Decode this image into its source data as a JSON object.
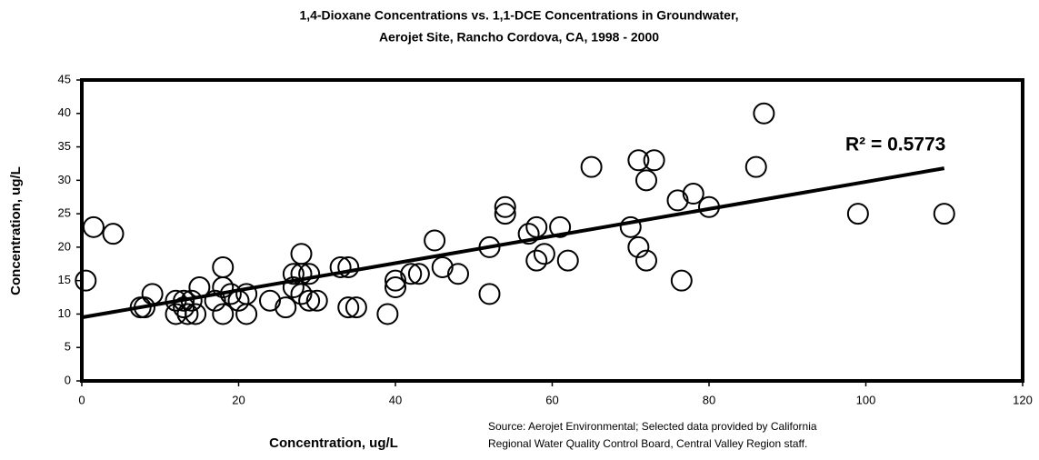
{
  "chart_data": {
    "type": "scatter",
    "title": [
      "1,4-Dioxane Concentrations vs. 1,1-DCE Concentrations in Groundwater,",
      "Aerojet Site, Rancho Cordova, CA, 1998 - 2000"
    ],
    "x_label": "Concentration, ug/L",
    "y_label": "Concentration, ug/L",
    "source": [
      "Source:  Aerojet Environmental; Selected data provided by California",
      "Regional Water Quality Control Board, Central Valley Region staff."
    ],
    "annotation": "R² = 0.5773",
    "color": "#000000",
    "x": [
      0.5,
      1.5,
      4,
      7.5,
      8,
      9,
      12,
      12,
      13,
      13,
      13.5,
      14,
      14.5,
      15,
      17,
      18,
      18,
      18,
      19,
      20,
      21,
      21,
      24,
      26,
      27,
      27,
      28,
      28,
      28,
      29,
      29,
      30,
      33,
      34,
      34,
      35,
      39,
      40,
      40,
      42,
      43,
      45,
      46,
      48,
      52,
      52,
      54,
      54,
      57,
      58,
      58,
      59,
      61,
      62,
      65,
      70,
      71,
      71,
      72,
      72,
      73,
      76,
      76.5,
      78,
      80,
      86,
      87,
      99,
      110
    ],
    "values": [
      15,
      23,
      22,
      11,
      11,
      13,
      12,
      10,
      12,
      11,
      10,
      12,
      10,
      14,
      12,
      17,
      14,
      10,
      13,
      12,
      10,
      13,
      12,
      11,
      14,
      16,
      19,
      16,
      13,
      12,
      16,
      12,
      17,
      17,
      11,
      11,
      10,
      15,
      14,
      16,
      16,
      21,
      17,
      16,
      20,
      13,
      26,
      25,
      22,
      23,
      18,
      19,
      23,
      18,
      32,
      23,
      33,
      20,
      30,
      18,
      33,
      27,
      15,
      28,
      26,
      32,
      40,
      25,
      25
    ],
    "trendline": {
      "x": [
        0,
        110
      ],
      "y": [
        9.5,
        31.8
      ]
    },
    "xlim": [
      0,
      120
    ],
    "xticks": [
      0,
      20,
      40,
      60,
      80,
      100,
      120
    ],
    "ylim": [
      0,
      45
    ],
    "yticks": [
      0,
      5,
      10,
      15,
      20,
      25,
      30,
      35,
      40,
      45
    ]
  }
}
